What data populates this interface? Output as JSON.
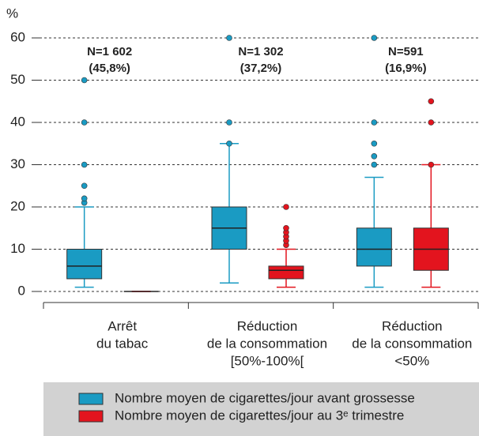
{
  "chart_data": {
    "type": "box",
    "y_label": "%",
    "ylim": [
      0,
      60
    ],
    "yticks": [
      0,
      10,
      20,
      30,
      40,
      50,
      60
    ],
    "grid": true,
    "categories": [
      [
        "Arrêt",
        "du tabac"
      ],
      [
        "Réduction",
        "de la consommation",
        "[50%-100%["
      ],
      [
        "Réduction",
        "de la consommation",
        "<50%"
      ]
    ],
    "annotations": [
      [
        "N=1 602",
        "(45,8%)"
      ],
      [
        "N=1 302",
        "(37,2%)"
      ],
      [
        "N=591",
        "(16,9%)"
      ]
    ],
    "series": [
      {
        "name": "Nombre moyen de cigarettes/jour avant grossesse",
        "color": "#1a9bc3",
        "boxes": [
          {
            "min": 1,
            "q1": 3,
            "median": 6,
            "q3": 10,
            "max": 20,
            "outliers": [
              21,
              22,
              25,
              30,
              40,
              50
            ]
          },
          {
            "min": 2,
            "q1": 10,
            "median": 15,
            "q3": 20,
            "max": 35,
            "outliers": [
              35,
              40,
              60
            ]
          },
          {
            "min": 1,
            "q1": 6,
            "median": 10,
            "q3": 15,
            "max": 27,
            "outliers": [
              30,
              32,
              35,
              40,
              60
            ]
          }
        ]
      },
      {
        "name": "Nombre moyen de cigarettes/jour au 3ᵉ trimestre",
        "color": "#e3141e",
        "boxes": [
          {
            "min": 0,
            "q1": 0,
            "median": 0,
            "q3": 0,
            "max": 0,
            "outliers": []
          },
          {
            "min": 1,
            "q1": 3,
            "median": 5,
            "q3": 6,
            "max": 10,
            "outliers": [
              11,
              12,
              13,
              14,
              15,
              20
            ]
          },
          {
            "min": 1,
            "q1": 5,
            "median": 10,
            "q3": 15,
            "max": 30,
            "outliers": [
              30,
              40,
              45
            ]
          }
        ]
      }
    ]
  }
}
